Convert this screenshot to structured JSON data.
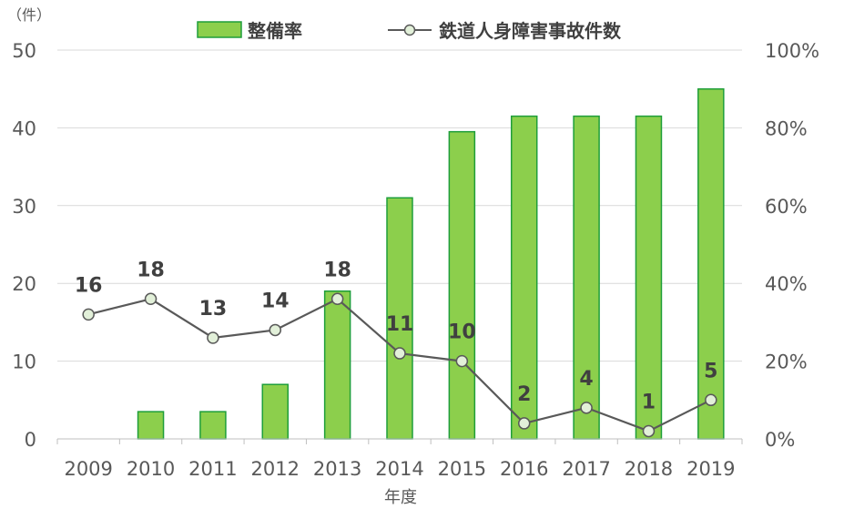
{
  "chart_data": {
    "type": "bar",
    "xlabel": "年度",
    "y_left_unit": "（件）",
    "categories": [
      "2009",
      "2010",
      "2011",
      "2012",
      "2013",
      "2014",
      "2015",
      "2016",
      "2017",
      "2018",
      "2019"
    ],
    "y_left": {
      "ylim": [
        0,
        50
      ],
      "ticks": [
        "0",
        "10",
        "20",
        "30",
        "40",
        "50"
      ]
    },
    "y_right": {
      "ylim": [
        0,
        100
      ],
      "ticks": [
        "0%",
        "20%",
        "40%",
        "60%",
        "80%",
        "100%"
      ]
    },
    "series": [
      {
        "name": "整備率",
        "type": "bar",
        "axis": "right",
        "color": "#8ccf4c",
        "edge_color": "#1e9e3a",
        "values": [
          0,
          7,
          7,
          14,
          38,
          62,
          79,
          83,
          83,
          83,
          90
        ]
      },
      {
        "name": "鉄道人身障害事故件数",
        "type": "line",
        "axis": "left",
        "color": "#595959",
        "marker_fill": "#e2f0d9",
        "values": [
          16,
          18,
          13,
          14,
          18,
          11,
          10,
          2,
          4,
          1,
          5
        ],
        "labels": [
          "16",
          "18",
          "13",
          "14",
          "18",
          "11",
          "10",
          "2",
          "4",
          "1",
          "5"
        ]
      }
    ],
    "grid": "horizontal",
    "legend": "top-center"
  }
}
